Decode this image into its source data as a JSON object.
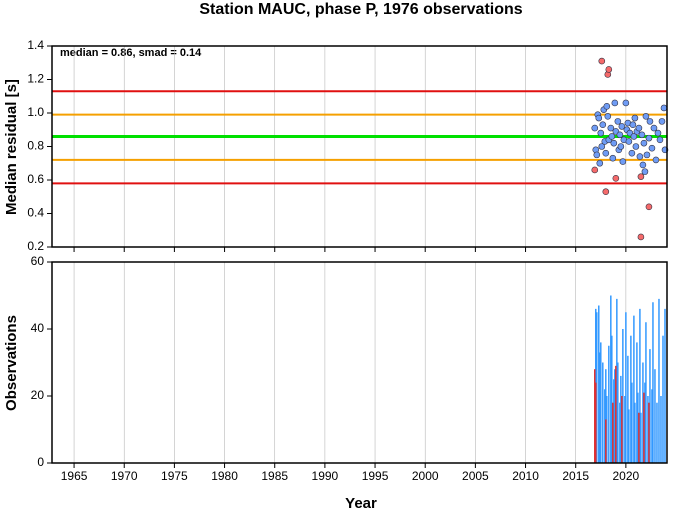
{
  "chart_data": [
    {
      "type": "scatter",
      "title": "Station MAUC, phase P, 1976 observations",
      "annotation": "median = 0.86, smad = 0.14",
      "ylabel": "Median residual [s]",
      "xlim": [
        1962.8,
        2024.1
      ],
      "ylim": [
        0.2,
        1.4
      ],
      "yticks": [
        0.2,
        0.4,
        0.6,
        0.8,
        {
          "value": 1,
          "label": "1.0"
        },
        1.2,
        1.4
      ],
      "grid": true,
      "reference_lines": [
        {
          "value": 1.13,
          "color": "#e01010"
        },
        {
          "value": 0.99,
          "color": "#f5a000"
        },
        {
          "value": 0.86,
          "color": "#00e000"
        },
        {
          "value": 0.72,
          "color": "#f5a000"
        },
        {
          "value": 0.58,
          "color": "#e01010"
        }
      ],
      "series": [
        {
          "color": "#6f9cf5",
          "x": [
            2016.9,
            2017.0,
            2017.1,
            2017.2,
            2017.3,
            2017.4,
            2017.5,
            2017.6,
            2017.7,
            2017.8,
            2017.9,
            2018.0,
            2018.1,
            2018.2,
            2018.3,
            2018.5,
            2018.6,
            2018.7,
            2018.8,
            2018.9,
            2019.0,
            2019.2,
            2019.3,
            2019.4,
            2019.5,
            2019.6,
            2019.7,
            2019.8,
            2020.0,
            2020.1,
            2020.2,
            2020.3,
            2020.4,
            2020.6,
            2020.7,
            2020.8,
            2020.9,
            2021.0,
            2021.1,
            2021.3,
            2021.4,
            2021.6,
            2021.7,
            2021.8,
            2021.9,
            2022.0,
            2022.1,
            2022.3,
            2022.4,
            2022.6,
            2022.8,
            2023.0,
            2023.2,
            2023.4,
            2023.6,
            2023.8,
            2023.9
          ],
          "values": [
            0.91,
            0.78,
            0.75,
            0.99,
            0.97,
            0.7,
            0.88,
            0.8,
            0.93,
            1.02,
            0.83,
            0.76,
            1.04,
            0.98,
            0.84,
            0.91,
            0.86,
            0.73,
            0.82,
            1.06,
            0.89,
            0.95,
            0.78,
            0.87,
            0.8,
            0.92,
            0.71,
            0.84,
            1.06,
            0.9,
            0.94,
            0.83,
            0.88,
            0.76,
            0.93,
            0.86,
            0.97,
            0.8,
            0.89,
            0.91,
            0.74,
            0.87,
            0.69,
            0.82,
            0.65,
            0.98,
            0.75,
            0.85,
            0.95,
            0.79,
            0.91,
            0.72,
            0.88,
            0.84,
            0.95,
            1.03,
            0.78
          ]
        },
        {
          "color": "#f56a6a",
          "x": [
            2016.9,
            2017.6,
            2018.0,
            2018.2,
            2018.3,
            2019.0,
            2021.5,
            2021.5,
            2022.3
          ],
          "values": [
            0.66,
            1.31,
            0.53,
            1.23,
            1.26,
            0.61,
            0.62,
            0.26,
            0.44
          ]
        }
      ]
    },
    {
      "type": "bar",
      "ylabel": "Observations",
      "xlabel": "Year",
      "xlim": [
        1962.8,
        2024.1
      ],
      "ylim": [
        0,
        60
      ],
      "xticks": [
        1965,
        1970,
        1975,
        1980,
        1985,
        1990,
        1995,
        2000,
        2005,
        2010,
        2015,
        2020
      ],
      "yticks": [
        0,
        20,
        40,
        60
      ],
      "grid": true,
      "series": [
        {
          "color": "#3399ff",
          "x": [
            2017.0,
            2017.1,
            2017.3,
            2017.4,
            2017.5,
            2017.7,
            2017.9,
            2018.0,
            2018.1,
            2018.3,
            2018.5,
            2018.6,
            2018.8,
            2018.9,
            2019.1,
            2019.2,
            2019.4,
            2019.5,
            2019.7,
            2019.9,
            2020.0,
            2020.2,
            2020.3,
            2020.5,
            2020.6,
            2020.8,
            2020.9,
            2021.1,
            2021.2,
            2021.4,
            2021.5,
            2021.7,
            2021.9,
            2022.0,
            2022.2,
            2022.4,
            2022.6,
            2022.7,
            2022.9,
            2023.1,
            2023.3,
            2023.5,
            2023.7,
            2023.9
          ],
          "values": [
            46,
            45,
            47,
            33,
            36,
            30,
            22,
            28,
            20,
            35,
            50,
            38,
            25,
            28,
            49,
            30,
            18,
            26,
            40,
            20,
            45,
            32,
            16,
            38,
            24,
            44,
            18,
            36,
            21,
            46,
            15,
            30,
            24,
            42,
            20,
            34,
            22,
            48,
            28,
            18,
            49,
            20,
            38,
            46
          ]
        },
        {
          "color": "#e03030",
          "x": [
            2016.9,
            2017.0,
            2018.0,
            2018.7,
            2019.0,
            2019.6,
            2021.3,
            2021.8,
            2022.3
          ],
          "values": [
            28,
            24,
            13,
            18,
            29,
            20,
            15,
            21,
            18
          ]
        }
      ]
    }
  ]
}
